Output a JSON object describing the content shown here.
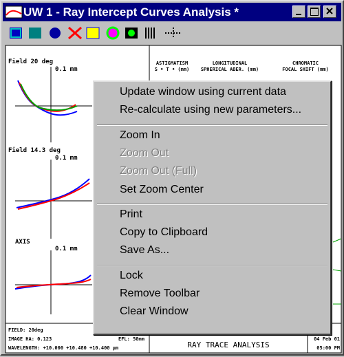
{
  "window": {
    "title": "UW 1 - Ray Intercept Curves Analysis *"
  },
  "plots": [
    {
      "label": "Field 20 deg",
      "scale": "0.1 mm"
    },
    {
      "label": "Field 14.3 deg",
      "scale": "0.1 mm"
    },
    {
      "label": "AXIS",
      "scale": "0.1 mm"
    }
  ],
  "header": {
    "columns": [
      {
        "title": "ASTIGMATISM",
        "subtitle": "S • T • (mm)"
      },
      {
        "title": "LONGITUDINAL",
        "subtitle": "SPHERICAL ABER. (mm)"
      },
      {
        "title": "CHROMATIC",
        "subtitle": "FOCAL SHIFT (mm)"
      }
    ]
  },
  "footer": {
    "field": "FIELD: 20deg",
    "image": "IMAGE HA: 0.123",
    "efl": "EFL: 50mm",
    "wavelength": "WAVELENGTH: +10.000 +10.480 +10.400 µm",
    "center": "RAY TRACE ANALYSIS",
    "date": "04 Feb 01",
    "time": "05:00 PM"
  },
  "menu": {
    "groups": [
      [
        {
          "label": "Update window using current data",
          "enabled": true
        },
        {
          "label": "Re-calculate using new parameters...",
          "enabled": true
        }
      ],
      [
        {
          "label": "Zoom In",
          "enabled": true
        },
        {
          "label": "Zoom Out",
          "enabled": false
        },
        {
          "label": "Zoom Out (Full)",
          "enabled": false
        },
        {
          "label": "Set Zoom Center",
          "enabled": true
        }
      ],
      [
        {
          "label": "Print",
          "enabled": true
        },
        {
          "label": "Copy to Clipboard",
          "enabled": true
        },
        {
          "label": "Save As...",
          "enabled": true
        }
      ],
      [
        {
          "label": "Lock",
          "enabled": true
        },
        {
          "label": "Remove Toolbar",
          "enabled": true
        },
        {
          "label": "Clear Window",
          "enabled": true
        }
      ]
    ]
  }
}
